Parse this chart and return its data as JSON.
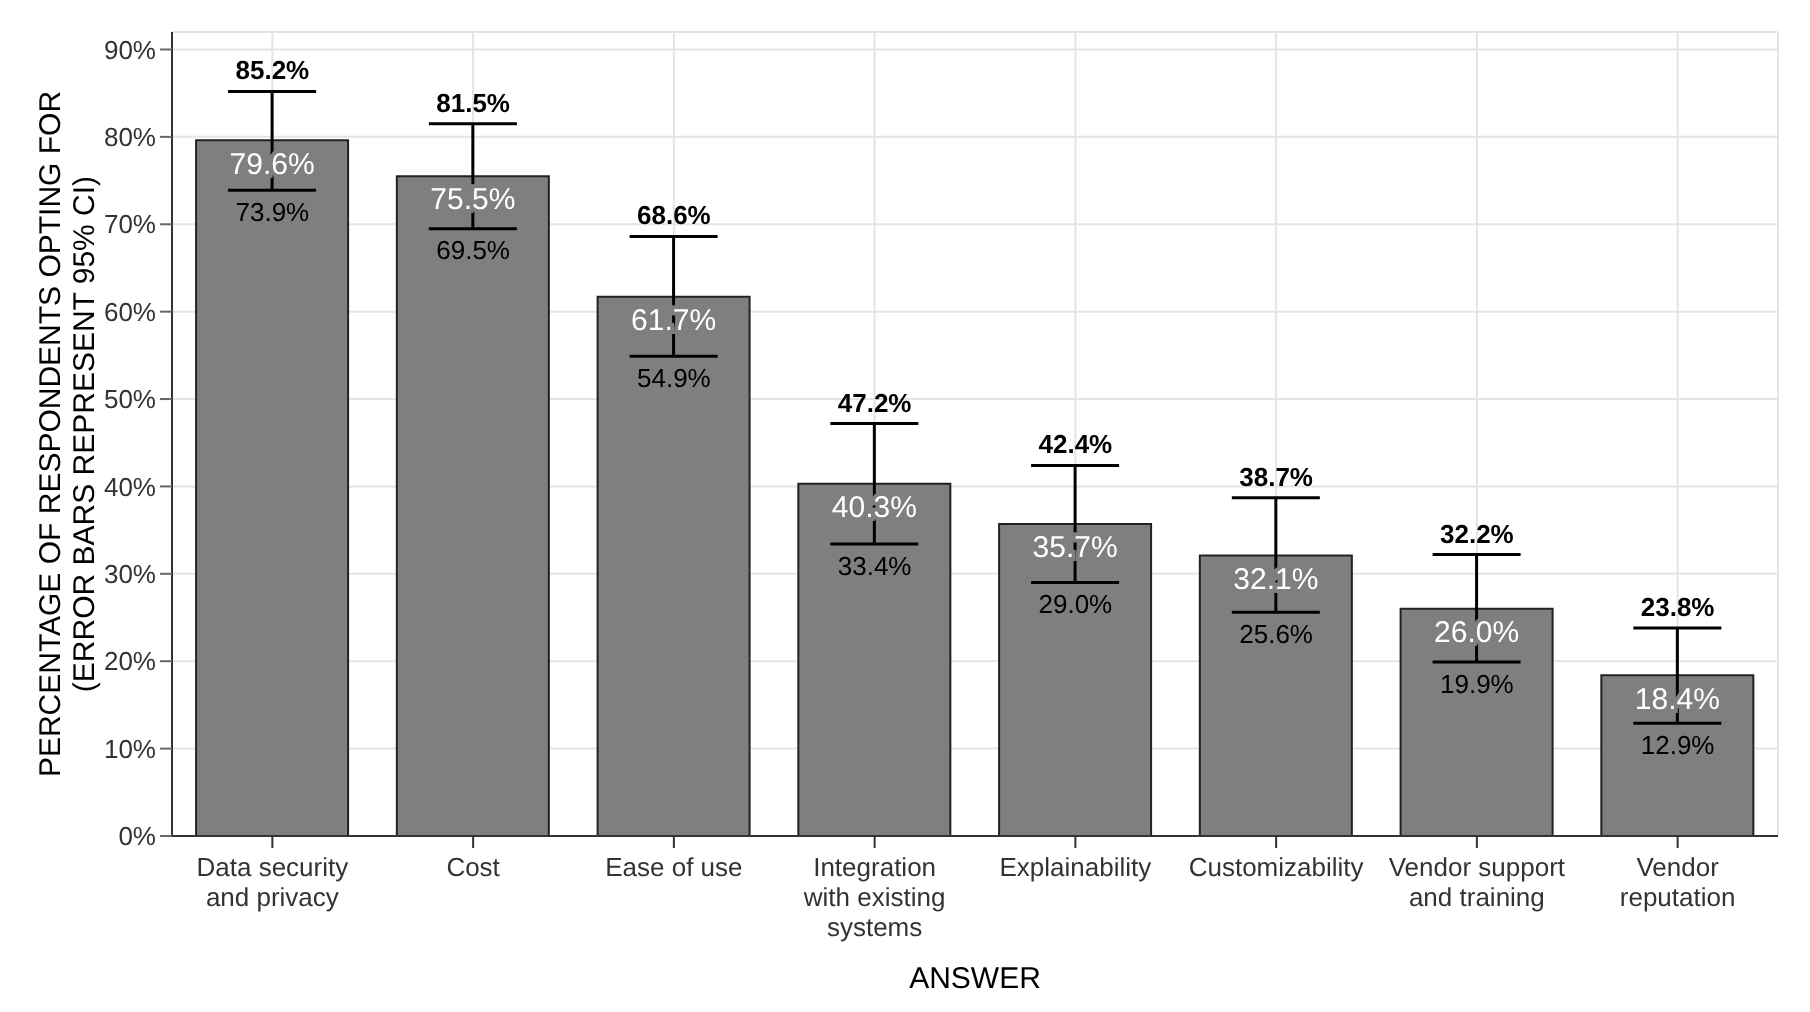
{
  "chart_data": {
    "type": "bar",
    "xlabel": "ANSWER",
    "ylabel": "PERCENTAGE OF RESPONDENTS OPTING FOR\n(ERROR BARS REPRESENT 95% CI)",
    "categories": [
      "Data security and privacy",
      "Cost",
      "Ease of use",
      "Integration with existing systems",
      "Explainability",
      "Customizability",
      "Vendor support and training",
      "Vendor reputation"
    ],
    "values": [
      79.6,
      75.5,
      61.7,
      40.3,
      35.7,
      32.1,
      26.0,
      18.4
    ],
    "value_labels": [
      "79.6%",
      "75.5%",
      "61.7%",
      "40.3%",
      "35.7%",
      "32.1%",
      "26.0%",
      "18.4%"
    ],
    "errors": [
      [
        73.9,
        85.2
      ],
      [
        69.5,
        81.5
      ],
      [
        54.9,
        68.6
      ],
      [
        33.4,
        47.2
      ],
      [
        29.0,
        42.4
      ],
      [
        25.6,
        38.7
      ],
      [
        19.9,
        32.2
      ],
      [
        12.9,
        23.8
      ]
    ],
    "color": "#7f7f7f",
    "ylim": [
      0,
      92
    ],
    "yticks": [
      {
        "value": 0,
        "label": "0%"
      },
      {
        "value": 10,
        "label": "10%"
      },
      {
        "value": 20,
        "label": "20%"
      },
      {
        "value": 30,
        "label": "30%"
      },
      {
        "value": 40,
        "label": "40%"
      },
      {
        "value": 50,
        "label": "50%"
      },
      {
        "value": 60,
        "label": "60%"
      },
      {
        "value": 70,
        "label": "70%"
      },
      {
        "value": 80,
        "label": "80%"
      },
      {
        "value": 90,
        "label": "90%"
      }
    ],
    "annotations": [
      {
        "text": "85.2%",
        "x": "Data security and privacy",
        "y": 85.2
      },
      {
        "text": "73.9%",
        "x": "Data security and privacy",
        "y": 73.9
      },
      {
        "text": "81.5%",
        "x": "Cost",
        "y": 81.5
      },
      {
        "text": "69.5%",
        "x": "Cost",
        "y": 69.5
      },
      {
        "text": "68.6%",
        "x": "Ease of use",
        "y": 68.6
      },
      {
        "text": "54.9%",
        "x": "Ease of use",
        "y": 54.9
      },
      {
        "text": "47.2%",
        "x": "Integration with existing systems",
        "y": 47.2
      },
      {
        "text": "33.4%",
        "x": "Integration with existing systems",
        "y": 33.4
      },
      {
        "text": "42.4%",
        "x": "Explainability",
        "y": 42.4
      },
      {
        "text": "29.0%",
        "x": "Explainability",
        "y": 29.0
      },
      {
        "text": "38.7%",
        "x": "Customizability",
        "y": 38.7
      },
      {
        "text": "25.6%",
        "x": "Customizability",
        "y": 25.6
      },
      {
        "text": "32.2%",
        "x": "Vendor support and training",
        "y": 32.2
      },
      {
        "text": "19.9%",
        "x": "Vendor support and training",
        "y": 19.9
      },
      {
        "text": "23.8%",
        "x": "Vendor reputation",
        "y": 23.8
      },
      {
        "text": "12.9%",
        "x": "Vendor reputation",
        "y": 12.9
      }
    ],
    "grid": true
  }
}
